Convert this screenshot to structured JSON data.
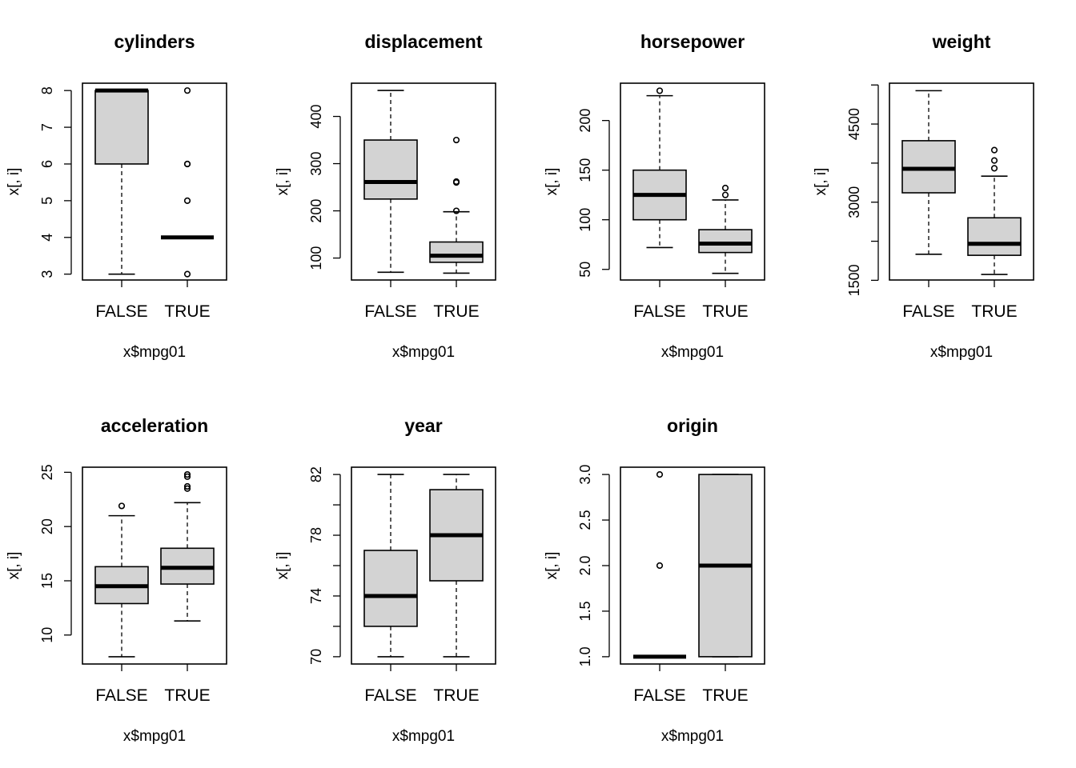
{
  "chart_data": [
    {
      "type": "box",
      "title": "cylinders",
      "xlabel": "x$mpg01",
      "ylabel": "x[, i]",
      "categories": [
        "FALSE",
        "TRUE"
      ],
      "ylim": [
        2.84,
        8.2
      ],
      "yticks": [
        3,
        4,
        5,
        6,
        7,
        8
      ],
      "minor_ticks": [],
      "groups": [
        {
          "name": "FALSE",
          "whisker_low": 3,
          "q1": 6,
          "median": 8,
          "q3": 8,
          "whisker_high": 8,
          "outliers": []
        },
        {
          "name": "TRUE",
          "whisker_low": 4,
          "q1": 4,
          "median": 4,
          "q3": 4,
          "whisker_high": 4,
          "outliers": [
            8,
            6,
            6,
            5,
            3
          ]
        }
      ]
    },
    {
      "type": "box",
      "title": "displacement",
      "xlabel": "x$mpg01",
      "ylabel": "x[, i]",
      "categories": [
        "FALSE",
        "TRUE"
      ],
      "ylim": [
        53.5,
        470.4
      ],
      "yticks": [
        100,
        200,
        300,
        400
      ],
      "minor_ticks": [],
      "groups": [
        {
          "name": "FALSE",
          "whisker_low": 70,
          "q1": 225,
          "median": 261,
          "q3": 350,
          "whisker_high": 455,
          "outliers": []
        },
        {
          "name": "TRUE",
          "whisker_low": 68,
          "q1": 91,
          "median": 105,
          "q3": 134,
          "whisker_high": 198,
          "outliers": [
            350,
            262,
            260,
            200
          ]
        }
      ]
    },
    {
      "type": "box",
      "title": "horsepower",
      "xlabel": "x$mpg01",
      "ylabel": "x[, i]",
      "categories": [
        "FALSE",
        "TRUE"
      ],
      "ylim": [
        39.3,
        237.6
      ],
      "yticks": [
        50,
        100,
        150,
        200
      ],
      "minor_ticks": [],
      "groups": [
        {
          "name": "FALSE",
          "whisker_low": 72,
          "q1": 100,
          "median": 125,
          "q3": 150,
          "whisker_high": 225,
          "outliers": [
            230
          ]
        },
        {
          "name": "TRUE",
          "whisker_low": 46,
          "q1": 67,
          "median": 76,
          "q3": 90,
          "whisker_high": 120,
          "outliers": [
            132,
            125
          ]
        }
      ]
    },
    {
      "type": "box",
      "title": "weight",
      "xlabel": "x$mpg01",
      "ylabel": "x[, i]",
      "categories": [
        "FALSE",
        "TRUE"
      ],
      "ylim": [
        1506,
        5284
      ],
      "yticks": [
        1500,
        3000,
        4500
      ],
      "minor_ticks": [
        2250,
        3750,
        5250
      ],
      "groups": [
        {
          "name": "FALSE",
          "whisker_low": 2000,
          "q1": 3180,
          "median": 3640,
          "q3": 4180,
          "whisker_high": 5140,
          "outliers": []
        },
        {
          "name": "TRUE",
          "whisker_low": 1613,
          "q1": 1980,
          "median": 2200,
          "q3": 2700,
          "whisker_high": 3500,
          "outliers": [
            4000,
            3800,
            3650
          ]
        }
      ]
    },
    {
      "type": "box",
      "title": "acceleration",
      "xlabel": "x$mpg01",
      "ylabel": "x[, i]",
      "categories": [
        "FALSE",
        "TRUE"
      ],
      "ylim": [
        7.33,
        25.47
      ],
      "yticks": [
        10,
        15,
        20,
        25
      ],
      "minor_ticks": [],
      "groups": [
        {
          "name": "FALSE",
          "whisker_low": 8,
          "q1": 12.9,
          "median": 14.5,
          "q3": 16.3,
          "whisker_high": 21,
          "outliers": [
            21.9
          ]
        },
        {
          "name": "TRUE",
          "whisker_low": 11.3,
          "q1": 14.7,
          "median": 16.2,
          "q3": 18,
          "whisker_high": 22.2,
          "outliers": [
            24.8,
            24.6,
            23.7,
            23.5
          ]
        }
      ]
    },
    {
      "type": "box",
      "title": "year",
      "xlabel": "x$mpg01",
      "ylabel": "x[, i]",
      "categories": [
        "FALSE",
        "TRUE"
      ],
      "ylim": [
        69.52,
        82.48
      ],
      "yticks": [
        70,
        74,
        78,
        82
      ],
      "minor_ticks": [
        72,
        76,
        80
      ],
      "groups": [
        {
          "name": "FALSE",
          "whisker_low": 70,
          "q1": 72,
          "median": 74,
          "q3": 77,
          "whisker_high": 82,
          "outliers": []
        },
        {
          "name": "TRUE",
          "whisker_low": 70,
          "q1": 75,
          "median": 78,
          "q3": 81,
          "whisker_high": 82,
          "outliers": []
        }
      ]
    },
    {
      "type": "box",
      "title": "origin",
      "xlabel": "x$mpg01",
      "ylabel": "x[, i]",
      "categories": [
        "FALSE",
        "TRUE"
      ],
      "ylim": [
        0.92,
        3.08
      ],
      "yticks": [
        1.0,
        1.5,
        2.0,
        2.5,
        3.0
      ],
      "minor_ticks": [],
      "groups": [
        {
          "name": "FALSE",
          "whisker_low": 1,
          "q1": 1,
          "median": 1,
          "q3": 1,
          "whisker_high": 1,
          "outliers": [
            3,
            2
          ]
        },
        {
          "name": "TRUE",
          "whisker_low": 1,
          "q1": 1,
          "median": 2,
          "q3": 3,
          "whisker_high": 3,
          "outliers": []
        }
      ]
    }
  ]
}
